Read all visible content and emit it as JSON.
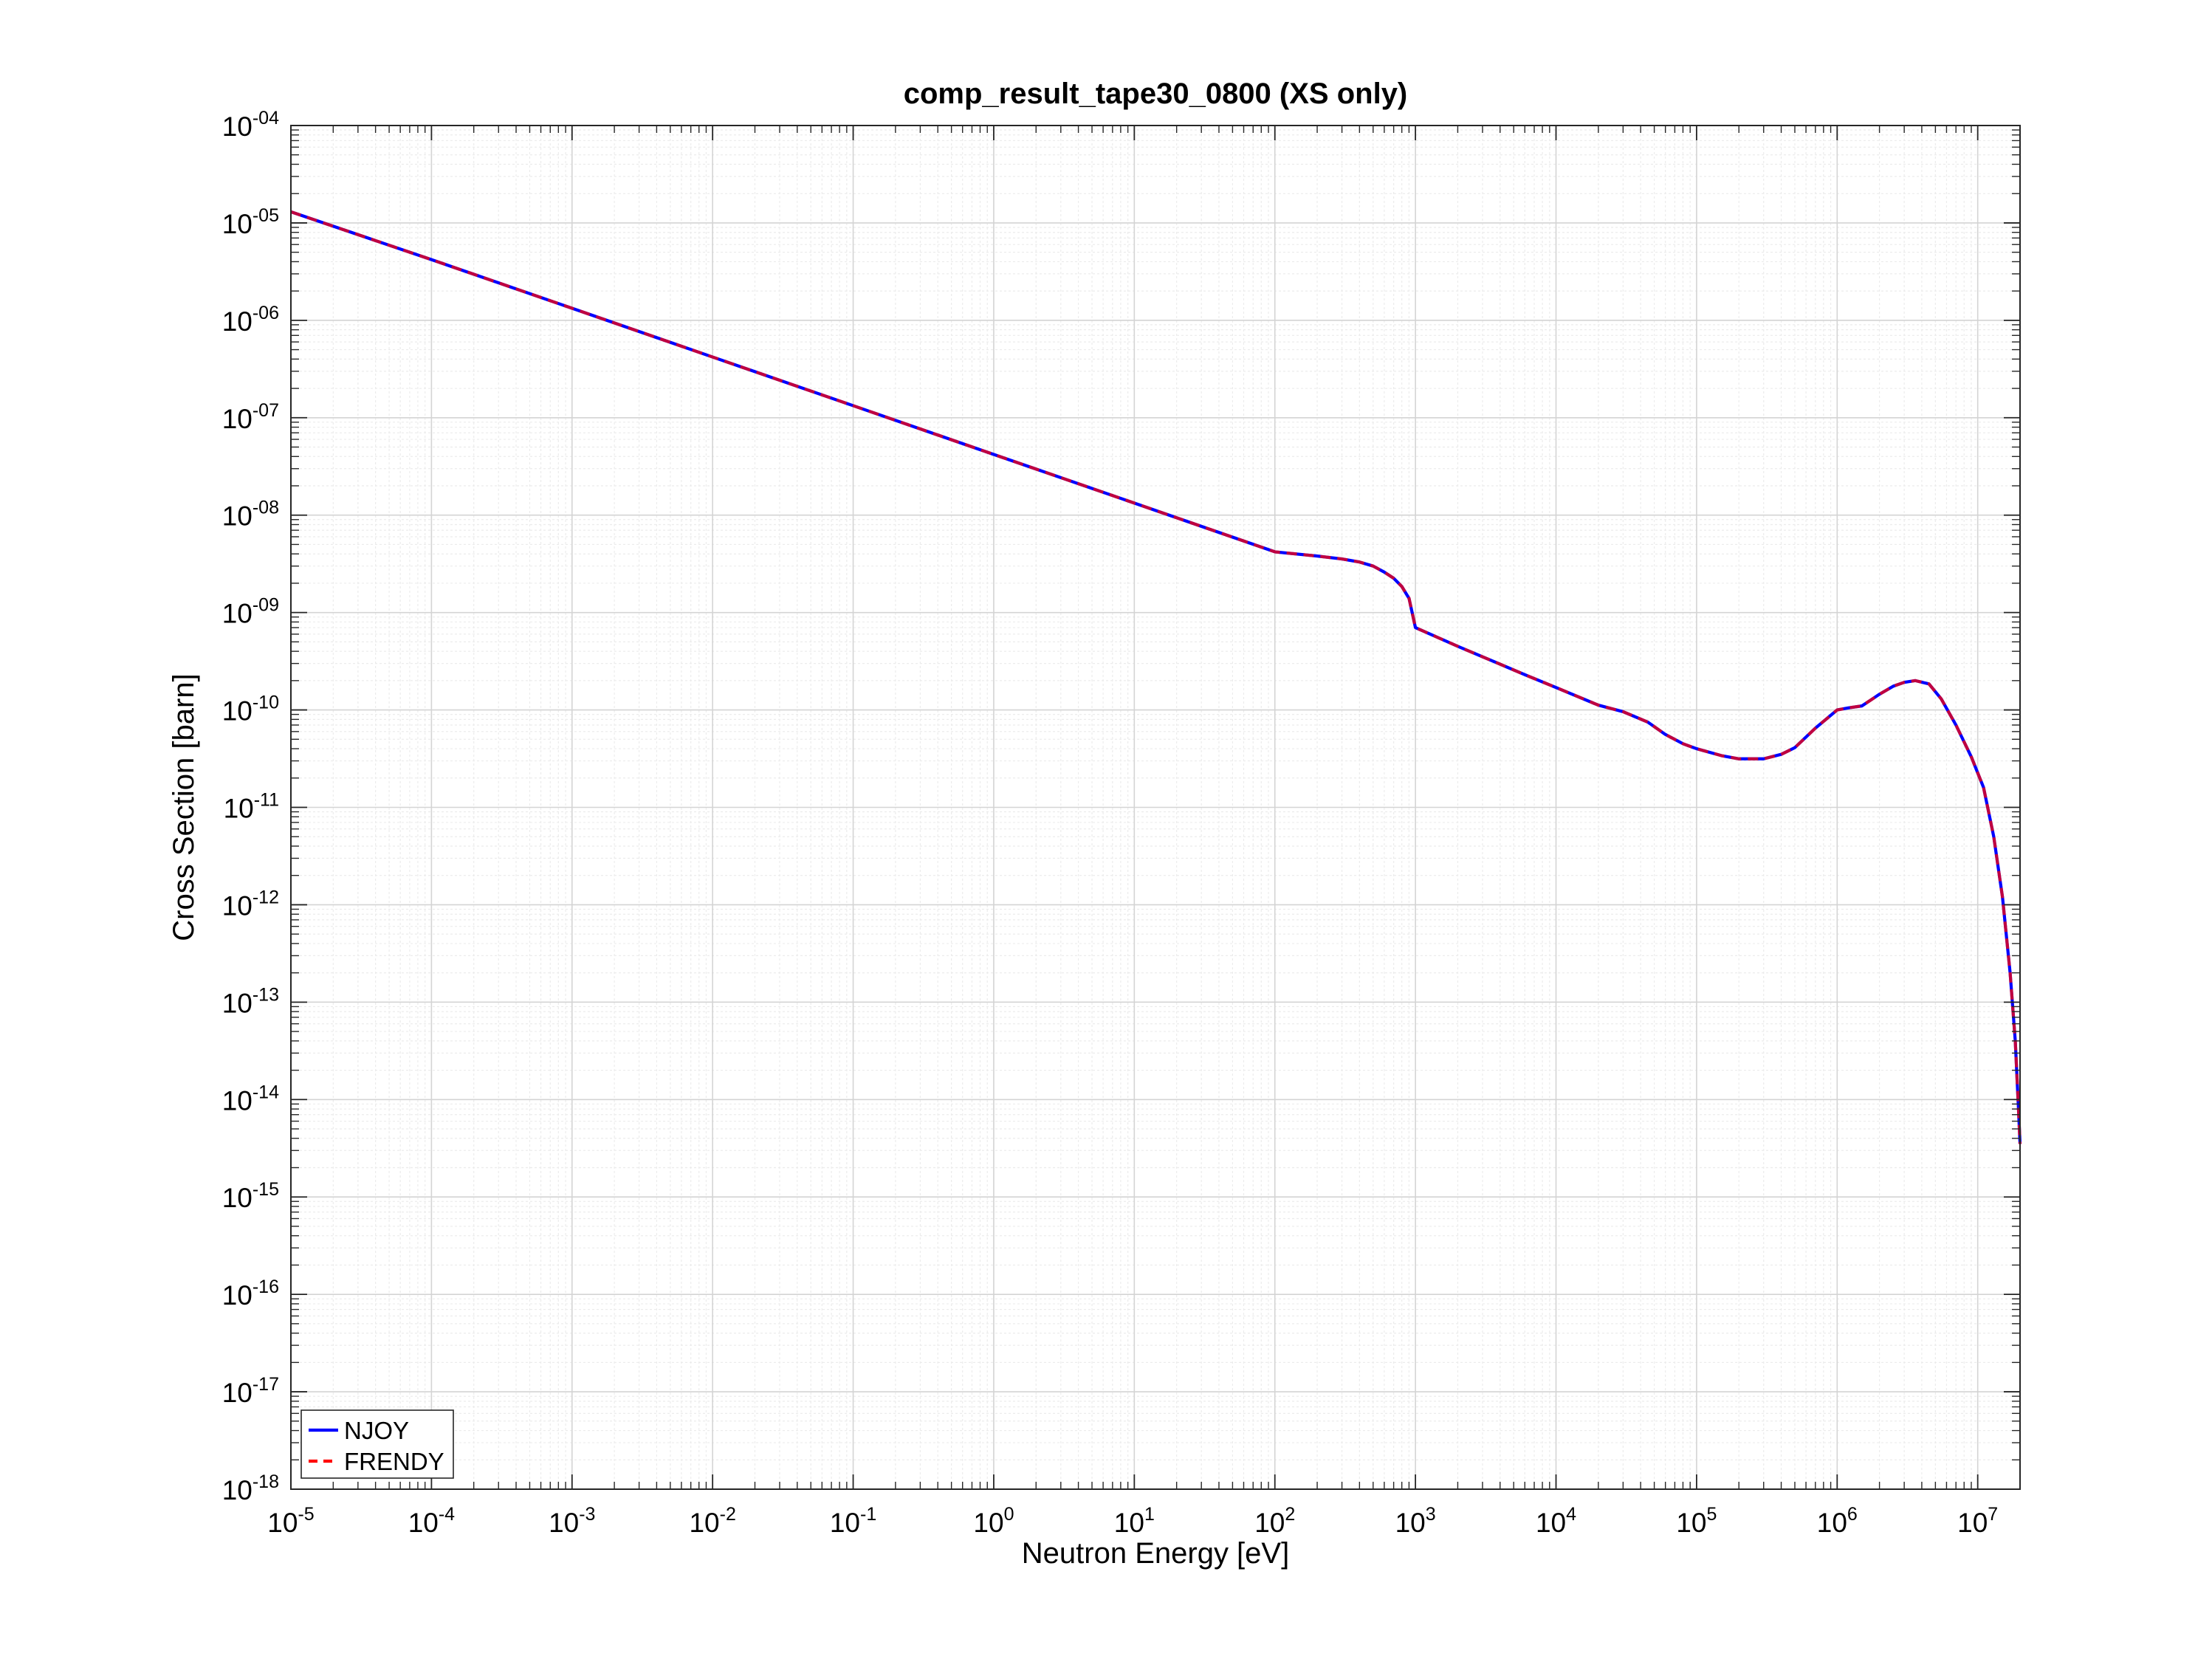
{
  "chart_data": {
    "type": "line",
    "title": "comp_result_tape30_0800 (XS only)",
    "xlabel": "Neutron Energy [eV]",
    "ylabel": "Cross Section [barn]",
    "xscale": "log",
    "yscale": "log",
    "xlim": [
      1e-05,
      20000000.0
    ],
    "ylim": [
      1e-18,
      0.0001
    ],
    "grid": true,
    "legend_position": "bottom-left",
    "x_ticks": [
      {
        "base": "10",
        "exp": "-5",
        "value": 1e-05
      },
      {
        "base": "10",
        "exp": "-4",
        "value": 0.0001
      },
      {
        "base": "10",
        "exp": "-3",
        "value": 0.001
      },
      {
        "base": "10",
        "exp": "-2",
        "value": 0.01
      },
      {
        "base": "10",
        "exp": "-1",
        "value": 0.1
      },
      {
        "base": "10",
        "exp": "0",
        "value": 1
      },
      {
        "base": "10",
        "exp": "1",
        "value": 10
      },
      {
        "base": "10",
        "exp": "2",
        "value": 100
      },
      {
        "base": "10",
        "exp": "3",
        "value": 1000
      },
      {
        "base": "10",
        "exp": "4",
        "value": 10000
      },
      {
        "base": "10",
        "exp": "5",
        "value": 100000
      },
      {
        "base": "10",
        "exp": "6",
        "value": 1000000
      },
      {
        "base": "10",
        "exp": "7",
        "value": 10000000
      }
    ],
    "y_ticks": [
      {
        "base": "10",
        "exp": "-04",
        "value": 0.0001
      },
      {
        "base": "10",
        "exp": "-05",
        "value": 1e-05
      },
      {
        "base": "10",
        "exp": "-06",
        "value": 1e-06
      },
      {
        "base": "10",
        "exp": "-07",
        "value": 1e-07
      },
      {
        "base": "10",
        "exp": "-08",
        "value": 1e-08
      },
      {
        "base": "10",
        "exp": "-09",
        "value": 1e-09
      },
      {
        "base": "10",
        "exp": "-10",
        "value": 1e-10
      },
      {
        "base": "10",
        "exp": "-11",
        "value": 1e-11
      },
      {
        "base": "10",
        "exp": "-12",
        "value": 1e-12
      },
      {
        "base": "10",
        "exp": "-13",
        "value": 1e-13
      },
      {
        "base": "10",
        "exp": "-14",
        "value": 1e-14
      },
      {
        "base": "10",
        "exp": "-15",
        "value": 1e-15
      },
      {
        "base": "10",
        "exp": "-16",
        "value": 1e-16
      },
      {
        "base": "10",
        "exp": "-17",
        "value": 1e-17
      },
      {
        "base": "10",
        "exp": "-18",
        "value": 1e-18
      }
    ],
    "series": [
      {
        "name": "NJOY",
        "color": "#0000ff",
        "dash": "solid",
        "x": [
          1e-05,
          0.0001,
          0.001,
          0.01,
          0.1,
          1,
          10,
          100,
          200,
          300,
          400,
          500,
          600,
          700,
          800,
          900,
          1000,
          2000,
          4000,
          6000,
          10000,
          20000,
          30000,
          45000,
          60000,
          80000,
          100000,
          150000,
          200000,
          300000,
          400000,
          500000,
          700000,
          900000,
          1000000,
          1200000,
          1500000,
          2000000,
          2500000,
          3000000,
          3600000,
          4500000,
          5500000,
          7000000,
          9000000,
          11000000,
          13000000,
          15000000,
          17000000,
          18500000,
          19500000,
          20000000
        ],
        "y": [
          1.3e-05,
          4.2e-06,
          1.33e-06,
          4.2e-07,
          1.33e-07,
          4.2e-08,
          1.33e-08,
          4.2e-09,
          3.8e-09,
          3.55e-09,
          3.3e-09,
          3e-09,
          2.6e-09,
          2.25e-09,
          1.85e-09,
          1.4e-09,
          7e-10,
          4.5e-10,
          2.95e-10,
          2.3e-10,
          1.7e-10,
          1.12e-10,
          9.6e-11,
          7.5e-11,
          5.6e-11,
          4.5e-11,
          4e-11,
          3.4e-11,
          3.15e-11,
          3.15e-11,
          3.5e-11,
          4.1e-11,
          6.5e-11,
          8.8e-11,
          1e-10,
          1.05e-10,
          1.1e-10,
          1.45e-10,
          1.75e-10,
          1.92e-10,
          2e-10,
          1.85e-10,
          1.3e-10,
          7e-11,
          3.3e-11,
          1.6e-11,
          5e-12,
          1.2e-12,
          2e-13,
          4e-14,
          8e-15,
          3.5e-15
        ]
      },
      {
        "name": "FRENDY",
        "color": "#ff0000",
        "dash": "dashed",
        "x": [
          1e-05,
          0.0001,
          0.001,
          0.01,
          0.1,
          1,
          10,
          100,
          200,
          300,
          400,
          500,
          600,
          700,
          800,
          900,
          1000,
          2000,
          4000,
          6000,
          10000,
          20000,
          30000,
          45000,
          60000,
          80000,
          100000,
          150000,
          200000,
          300000,
          400000,
          500000,
          700000,
          900000,
          1000000,
          1200000,
          1500000,
          2000000,
          2500000,
          3000000,
          3600000,
          4500000,
          5500000,
          7000000,
          9000000,
          11000000,
          13000000,
          15000000,
          17000000,
          18500000,
          19500000,
          20000000
        ],
        "y": [
          1.3e-05,
          4.2e-06,
          1.33e-06,
          4.2e-07,
          1.33e-07,
          4.2e-08,
          1.33e-08,
          4.2e-09,
          3.8e-09,
          3.55e-09,
          3.3e-09,
          3e-09,
          2.6e-09,
          2.25e-09,
          1.85e-09,
          1.4e-09,
          7e-10,
          4.5e-10,
          2.95e-10,
          2.3e-10,
          1.7e-10,
          1.12e-10,
          9.6e-11,
          7.5e-11,
          5.6e-11,
          4.5e-11,
          4e-11,
          3.4e-11,
          3.15e-11,
          3.15e-11,
          3.5e-11,
          4.1e-11,
          6.5e-11,
          8.8e-11,
          1e-10,
          1.05e-10,
          1.1e-10,
          1.45e-10,
          1.75e-10,
          1.92e-10,
          2e-10,
          1.85e-10,
          1.3e-10,
          7e-11,
          3.3e-11,
          1.6e-11,
          5e-12,
          1.2e-12,
          2e-13,
          4e-14,
          8e-15,
          3.5e-15
        ]
      }
    ]
  }
}
